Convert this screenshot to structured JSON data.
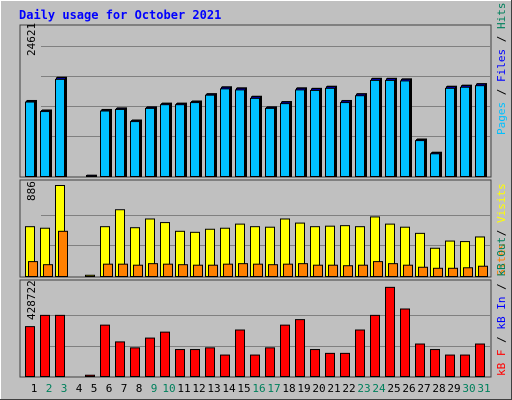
{
  "chart_data": [
    {
      "type": "bar",
      "title": "Daily usage for October 2021",
      "max_label": "24621",
      "legend": [
        {
          "label": "Pages",
          "color": "#00C0FF"
        },
        {
          "label": "Files",
          "color": "#0000FF"
        },
        {
          "label": "Hits",
          "color": "#00805C"
        }
      ],
      "separator": " / ",
      "categories": [
        "1",
        "2",
        "3",
        "4",
        "5",
        "6",
        "7",
        "8",
        "9",
        "10",
        "11",
        "12",
        "13",
        "14",
        "15",
        "16",
        "17",
        "18",
        "19",
        "20",
        "21",
        "22",
        "23",
        "24",
        "25",
        "26",
        "27",
        "28",
        "29",
        "30",
        "31"
      ],
      "weekend_days": [
        "2",
        "3",
        "9",
        "10",
        "16",
        "17",
        "23",
        "24",
        "30",
        "31"
      ],
      "ylim": [
        0,
        24621
      ],
      "series": [
        {
          "name": "Pages",
          "values": [
            14100,
            12300,
            18400,
            0,
            0,
            12400,
            12700,
            10400,
            12900,
            13600,
            13600,
            14000,
            15400,
            16600,
            16400,
            14800,
            12900,
            13800,
            16400,
            16300,
            16700,
            14000,
            15300,
            18200,
            18200,
            18100,
            6800,
            4300,
            16700,
            16900,
            17200
          ]
        },
        {
          "name": "Files",
          "values": [
            14300,
            12500,
            18700,
            0,
            200,
            12600,
            12900,
            10600,
            13100,
            13800,
            13800,
            14200,
            15600,
            16900,
            16700,
            15100,
            13100,
            14100,
            16700,
            16600,
            17000,
            14300,
            15600,
            18500,
            18500,
            18400,
            7000,
            4500,
            17000,
            17200,
            17500
          ]
        },
        {
          "name": "Hits",
          "values": [
            14400,
            12600,
            18800,
            0,
            250,
            12700,
            13000,
            10700,
            13200,
            13900,
            13900,
            14300,
            15700,
            17000,
            16800,
            15200,
            13200,
            14200,
            16800,
            16700,
            17100,
            14400,
            15700,
            18600,
            18600,
            18500,
            7100,
            4600,
            17100,
            17300,
            17600
          ]
        }
      ]
    },
    {
      "type": "bar",
      "max_label": "886",
      "legend": [
        {
          "label": "Visits",
          "color": "#FFFF00"
        },
        {
          "label": "Sites",
          "color": "#FF8000"
        }
      ],
      "separator": " / ",
      "ylim": [
        0,
        886
      ],
      "series": [
        {
          "name": "Visits",
          "values": [
            485,
            470,
            886,
            0,
            12,
            485,
            650,
            475,
            560,
            525,
            440,
            430,
            460,
            470,
            510,
            485,
            480,
            560,
            520,
            485,
            490,
            495,
            485,
            580,
            510,
            480,
            420,
            275,
            345,
            340,
            385
          ]
        },
        {
          "name": "Sites",
          "values": [
            145,
            115,
            440,
            0,
            0,
            120,
            120,
            110,
            125,
            120,
            115,
            110,
            110,
            120,
            125,
            120,
            115,
            120,
            125,
            110,
            110,
            105,
            110,
            145,
            125,
            110,
            90,
            80,
            80,
            85,
            100
          ]
        }
      ]
    },
    {
      "type": "bar",
      "max_label": "428722",
      "legend": [
        {
          "label": "kB F",
          "color": "#FF0000"
        },
        {
          "label": "kB In",
          "color": "#0000FF"
        },
        {
          "label": "kB Out",
          "color": "#00805C"
        }
      ],
      "separator": " / ",
      "ylim": [
        0,
        428722
      ],
      "series": [
        {
          "name": "kB F",
          "values": [
            235000,
            288000,
            288000,
            0,
            6000,
            242000,
            163000,
            135000,
            181000,
            209000,
            127000,
            127000,
            135000,
            101000,
            219000,
            101000,
            135000,
            242000,
            268000,
            127000,
            109000,
            109000,
            219000,
            288000,
            420000,
            318000,
            153000,
            127000,
            101000,
            101000,
            153000
          ]
        }
      ]
    }
  ]
}
